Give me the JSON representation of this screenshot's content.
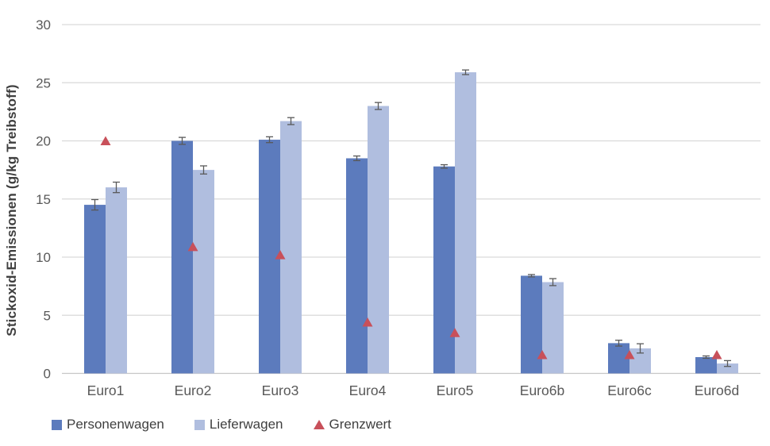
{
  "chart_data": {
    "type": "bar",
    "title": "",
    "xlabel": "",
    "ylabel": "Stickoxid-Emissionen (g/kg Treibstoff)",
    "ylim": [
      0,
      30
    ],
    "yticks": [
      0,
      5,
      10,
      15,
      20,
      25,
      30
    ],
    "grid": "horizontal",
    "legend_position": "bottom",
    "categories": [
      "Euro1",
      "Euro2",
      "Euro3",
      "Euro4",
      "Euro5",
      "Euro6b",
      "Euro6c",
      "Euro6d"
    ],
    "series": [
      {
        "name": "Personenwagen",
        "color": "#5C7BBD",
        "values": [
          14.5,
          20.0,
          20.1,
          18.5,
          17.8,
          8.4,
          2.6,
          1.4
        ],
        "errors": [
          0.45,
          0.3,
          0.25,
          0.2,
          0.15,
          0.1,
          0.25,
          0.1
        ]
      },
      {
        "name": "Lieferwagen",
        "color": "#B0BEDF",
        "values": [
          16.0,
          17.5,
          21.7,
          23.0,
          25.9,
          7.85,
          2.15,
          0.85
        ],
        "errors": [
          0.45,
          0.35,
          0.3,
          0.3,
          0.2,
          0.3,
          0.4,
          0.25
        ]
      }
    ],
    "grenzwert": {
      "name": "Grenzwert",
      "marker": "triangle-icon",
      "color": "#C8505A",
      "values": [
        20,
        10.9,
        10.2,
        4.4,
        3.5,
        1.6,
        1.6,
        1.6
      ]
    },
    "colors": {
      "error_bar": "#595959",
      "gridline": "#D9D9D9",
      "axis_line": "#C6C6C6",
      "tick_label": "#595959",
      "axis_title": "#3F3F3F",
      "legend_text": "#3F3F3F"
    }
  }
}
